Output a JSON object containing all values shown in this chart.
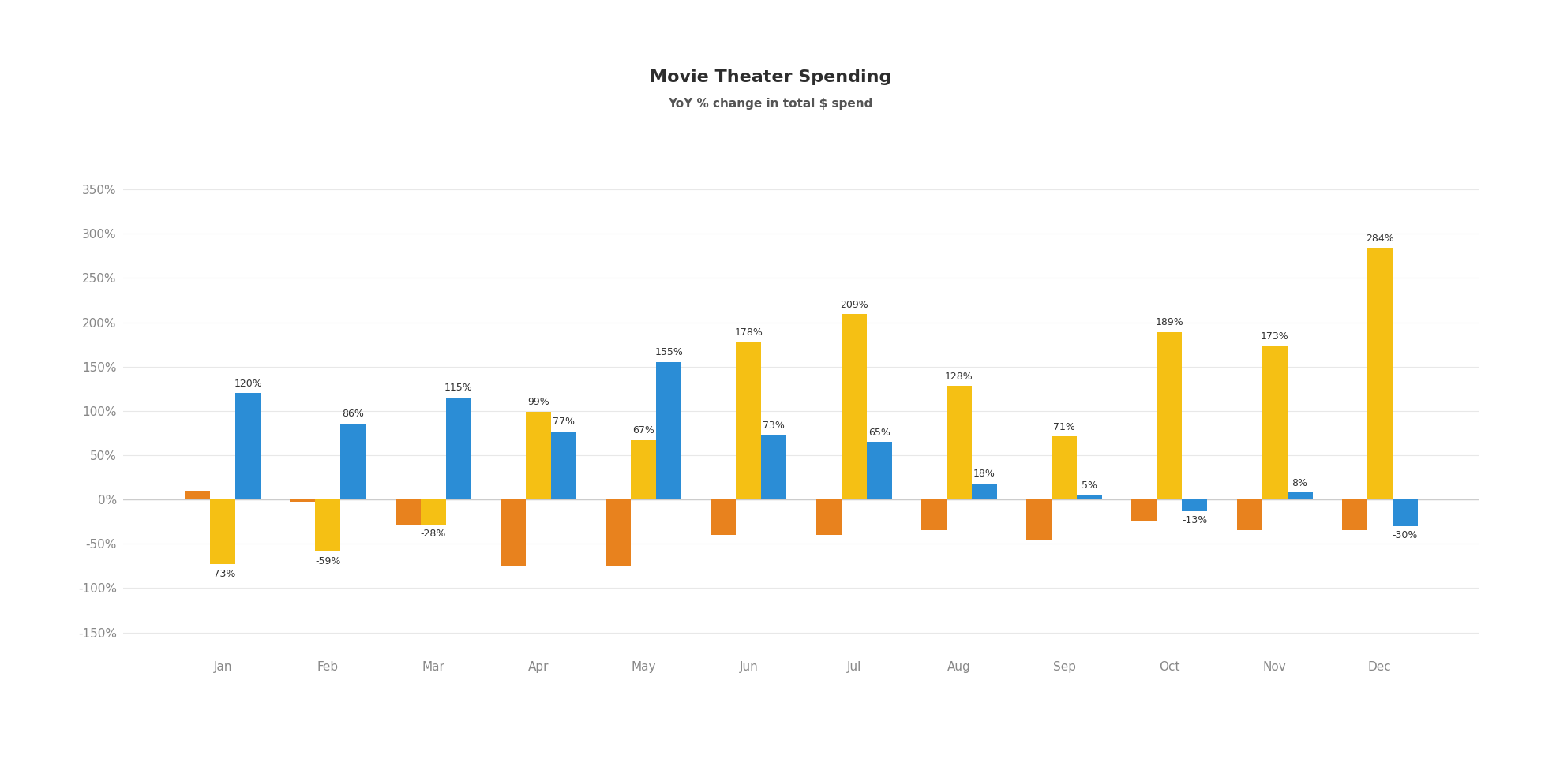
{
  "title": "Movie Theater Spending",
  "subtitle": "YoY % change in total $ spend",
  "categories": [
    "Jan",
    "Feb",
    "Mar",
    "Apr",
    "May",
    "Jun",
    "Jul",
    "Aug",
    "Sep",
    "Oct",
    "Nov",
    "Dec"
  ],
  "series": {
    "2020 vs 2019": [
      10,
      -3,
      -28,
      -75,
      -75,
      -40,
      -40,
      -35,
      -45,
      -25,
      -35,
      -35
    ],
    "2021 vs 2020": [
      -73,
      -59,
      -28,
      99,
      67,
      178,
      209,
      128,
      71,
      189,
      173,
      284
    ],
    "2022 vs 2021": [
      120,
      86,
      115,
      77,
      155,
      73,
      65,
      18,
      5,
      -13,
      8,
      -30
    ]
  },
  "show_labels": {
    "2020 vs 2019": false,
    "2021 vs 2020": true,
    "2022 vs 2021": true
  },
  "colors": {
    "2020 vs 2019": "#E8821E",
    "2021 vs 2020": "#F5C014",
    "2022 vs 2021": "#2B8DD6"
  },
  "ylim": [
    -175,
    390
  ],
  "yticks": [
    -150,
    -100,
    -50,
    0,
    50,
    100,
    150,
    200,
    250,
    300,
    350
  ],
  "ytick_labels": [
    "-150%",
    "-100%",
    "-50%",
    "0%",
    "50%",
    "100%",
    "150%",
    "200%",
    "250%",
    "300%",
    "350%"
  ],
  "background_color": "#FFFFFF",
  "title_fontsize": 16,
  "subtitle_fontsize": 11,
  "label_fontsize": 9,
  "tick_fontsize": 11,
  "legend_fontsize": 11
}
